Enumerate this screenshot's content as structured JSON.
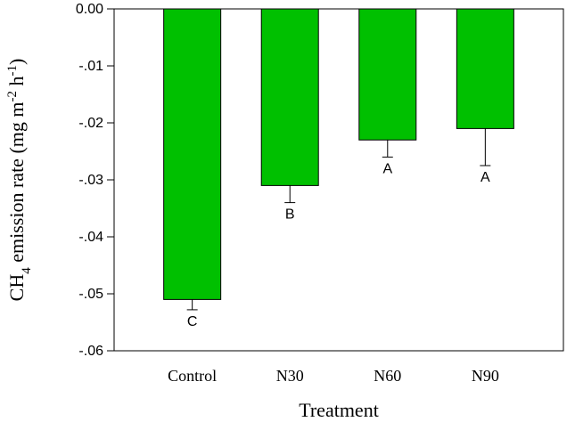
{
  "chart_data": {
    "type": "bar",
    "categories": [
      "Control",
      "N30",
      "N60",
      "N90"
    ],
    "values": [
      -0.051,
      -0.031,
      -0.023,
      -0.021
    ],
    "error_bars": [
      0.0018,
      0.003,
      0.003,
      0.0065
    ],
    "significance_letters": [
      "C",
      "B",
      "A",
      "A"
    ],
    "xlabel": "Treatment",
    "ylabel_parts": [
      "CH",
      "4",
      " emission rate (mg m",
      "-2",
      " h",
      "-1",
      ")"
    ],
    "ylim": [
      -0.06,
      0.0
    ],
    "yticks": [
      "0.00",
      "-.01",
      "-.02",
      "-.03",
      "-.04",
      "-.05",
      "-.06"
    ],
    "ytick_values": [
      0.0,
      -0.01,
      -0.02,
      -0.03,
      -0.04,
      -0.05,
      -0.06
    ],
    "bar_color": "#00c000",
    "grid": false,
    "legend": "none"
  }
}
